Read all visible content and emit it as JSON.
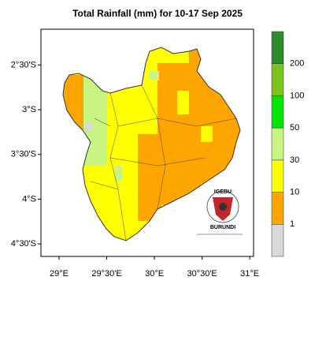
{
  "map": {
    "title": "Total Rainfall (mm) for 10-17 Sep 2025",
    "xlim": [
      28.81,
      31.04
    ],
    "ylim": [
      -4.64,
      -2.1
    ],
    "xticks": [
      {
        "value": 29,
        "label": "29°E"
      },
      {
        "value": 29.5,
        "label": "29°30'E"
      },
      {
        "value": 30,
        "label": "30°E"
      },
      {
        "value": 30.5,
        "label": "30°30'E"
      },
      {
        "value": 31,
        "label": "31°E"
      }
    ],
    "yticks": [
      {
        "value": -2.5,
        "label": "2°30'S"
      },
      {
        "value": -3,
        "label": "3°S"
      },
      {
        "value": -3.5,
        "label": "3°30'S"
      },
      {
        "value": -4,
        "label": "4°S"
      },
      {
        "value": -4.5,
        "label": "4°30'S"
      }
    ],
    "colorbar": {
      "levels": [
        1,
        10,
        30,
        50,
        100,
        200
      ],
      "colors": [
        "#d9d9d9",
        "#ffa500",
        "#ffff00",
        "#c8f582",
        "#00e600",
        "#7cc31c",
        "#2e8b2e"
      ]
    },
    "logo": {
      "top": "IGEBU",
      "bottom": "BURUNDI"
    }
  }
}
